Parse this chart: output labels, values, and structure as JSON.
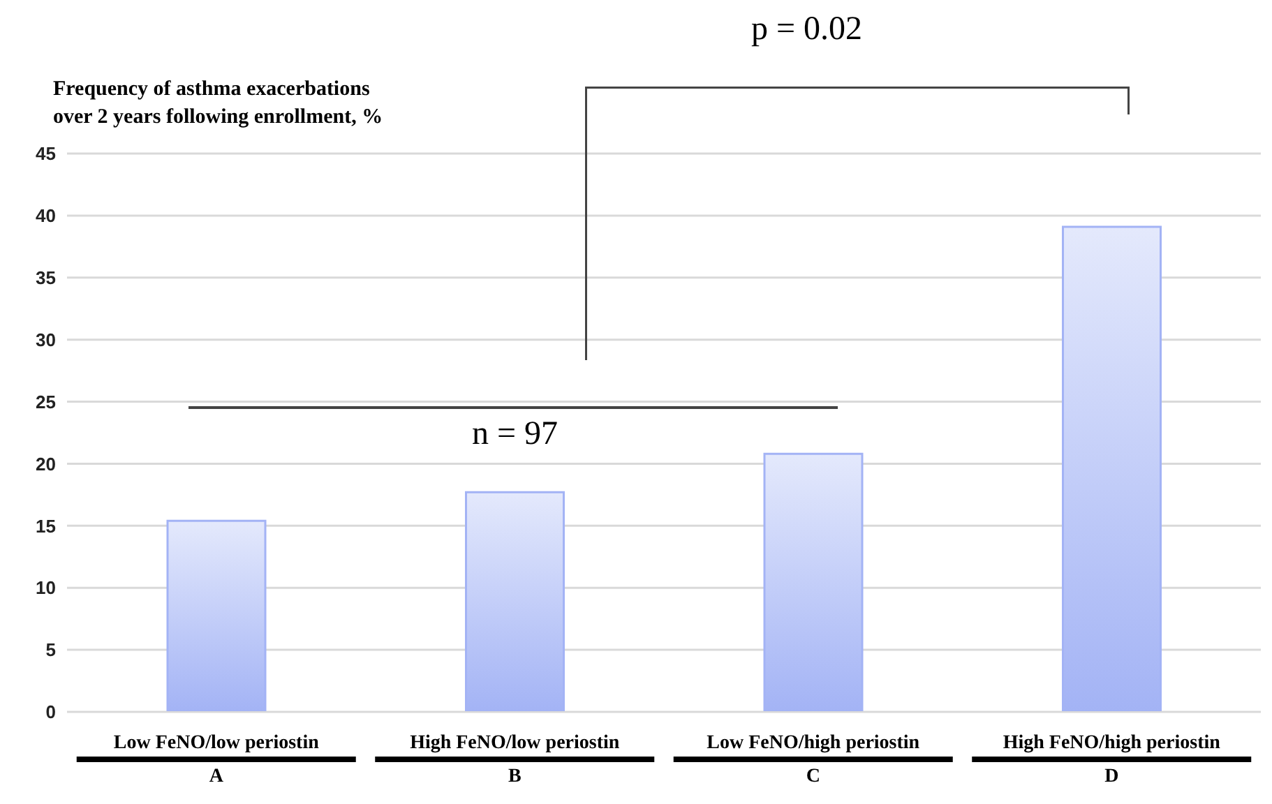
{
  "chart_data": {
    "type": "bar",
    "title": "Frequency of asthma exacerbations\nover 2 years following enrollment, %",
    "categories": [
      "Low FeNO/low periostin\nA",
      "High FeNO/low periostin\nB",
      "Low FeNO/high periostin\nC",
      "High FeNO/high periostin\nD"
    ],
    "values": [
      15.4,
      17.7,
      20.8,
      39.1
    ],
    "color": "#a3b3f5",
    "ylim": [
      0,
      45
    ],
    "yticks": [
      0,
      5,
      10,
      15,
      20,
      25,
      30,
      35,
      40,
      45
    ],
    "grid": "y",
    "annotations": [
      "p = 0.02",
      "n = 97"
    ]
  }
}
